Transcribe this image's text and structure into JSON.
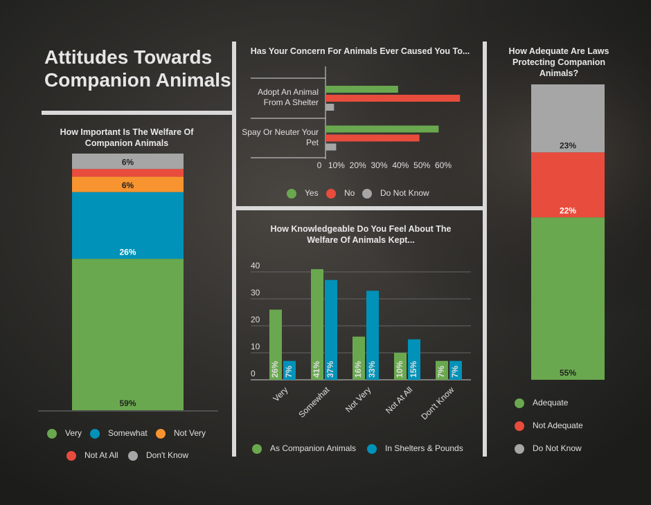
{
  "title": "Attitudes Towards Companion Animals",
  "chart_data": [
    {
      "type": "stacked_bar",
      "title": "How Important Is The Welfare Of Companion Animals",
      "series": [
        {
          "name": "Very",
          "color": "#6aa84f",
          "values": [
            59
          ],
          "value_labels": [
            "59%"
          ]
        },
        {
          "name": "Somewhat",
          "color": "#0092b8",
          "values": [
            26
          ],
          "value_labels": [
            "26%"
          ]
        },
        {
          "name": "Not Very",
          "color": "#f7942f",
          "values": [
            6
          ],
          "value_labels": [
            "6%"
          ]
        },
        {
          "name": "Not At All",
          "color": "#e84c3d",
          "values": [
            3
          ]
        },
        {
          "name": "Don't Know",
          "color": "#a6a6a6",
          "values": [
            6
          ],
          "value_labels": [
            "6%"
          ]
        }
      ]
    },
    {
      "type": "hbar",
      "title": "Has Your Concern For Animals Ever Caused You To...",
      "categories": [
        "Adopt An Animal From A Shelter",
        "Spay Or Neuter Your Pet"
      ],
      "series": [
        {
          "name": "Yes",
          "color": "#6aa84f",
          "values": [
            34,
            53
          ]
        },
        {
          "name": "No",
          "color": "#e84c3d",
          "values": [
            63,
            44
          ]
        },
        {
          "name": "Do Not Know",
          "color": "#a6a6a6",
          "values": [
            4,
            5
          ]
        }
      ],
      "xlim": [
        0,
        60
      ],
      "xticks": [
        0,
        {
          "value": 10,
          "label": "10%"
        },
        {
          "value": 20,
          "label": "20%"
        },
        {
          "value": 30,
          "label": "30%"
        },
        {
          "value": 40,
          "label": "40%"
        },
        {
          "value": 50,
          "label": "50%"
        },
        {
          "value": 60,
          "label": "60%"
        }
      ]
    },
    {
      "type": "bar",
      "title": "How Knowledgeable Do You Feel About The Welfare Of Animals Kept...",
      "categories": [
        "Very",
        "Somewhat",
        "Not Very",
        "Not At All",
        "Don't Know"
      ],
      "series": [
        {
          "name": "As Companion Animals",
          "color": "#6aa84f",
          "values": [
            26,
            41,
            16,
            10,
            7
          ],
          "value_labels": [
            "26%",
            "41%",
            "16%",
            "10%",
            "7%"
          ]
        },
        {
          "name": "In Shelters & Pounds",
          "color": "#0092b8",
          "values": [
            7,
            37,
            33,
            15,
            7
          ],
          "value_labels": [
            "7%",
            "37%",
            "33%",
            "15%",
            "7%"
          ]
        }
      ],
      "ylim": [
        0,
        40
      ],
      "yticks": [
        0,
        10,
        20,
        30,
        40
      ],
      "grid": true
    },
    {
      "type": "stacked_bar",
      "title": "How Adequate Are Laws Protecting Companion Animals?",
      "series": [
        {
          "name": "Adequate",
          "color": "#6aa84f",
          "values": [
            55
          ],
          "value_labels": [
            "55%"
          ]
        },
        {
          "name": "Not Adequate",
          "color": "#e84c3d",
          "values": [
            22
          ],
          "value_labels": [
            "22%"
          ]
        },
        {
          "name": "Do Not Know",
          "color": "#a6a6a6",
          "values": [
            23
          ],
          "value_labels": [
            "23%"
          ]
        }
      ]
    }
  ]
}
